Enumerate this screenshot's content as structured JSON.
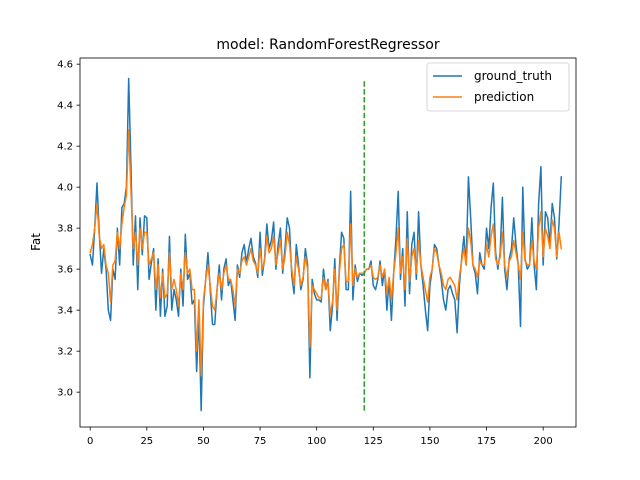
{
  "chart_data": {
    "type": "line",
    "title": "model: RandomForestRegressor",
    "xlabel": "",
    "ylabel": "Fat",
    "xlim": [
      -4.5,
      214.5
    ],
    "ylim": [
      2.83,
      4.63
    ],
    "xticks": [
      0,
      25,
      50,
      75,
      100,
      125,
      150,
      175,
      200
    ],
    "yticks": [
      3.0,
      3.2,
      3.4,
      3.6,
      3.8,
      4.0,
      4.2,
      4.4,
      4.6
    ],
    "legend_position": "top-right",
    "split_line": {
      "x": 121,
      "y0": 2.91,
      "y1": 4.52,
      "color": "#2ca02c",
      "style": "dashed"
    },
    "series": [
      {
        "name": "ground_truth",
        "color": "#1f77b4",
        "x_start": 0,
        "values": [
          3.67,
          3.62,
          3.8,
          4.02,
          3.78,
          3.58,
          3.7,
          3.6,
          3.4,
          3.35,
          3.6,
          3.55,
          3.8,
          3.62,
          3.9,
          3.92,
          4.0,
          4.53,
          4.1,
          3.62,
          3.86,
          3.5,
          3.85,
          3.67,
          3.86,
          3.85,
          3.55,
          3.63,
          3.7,
          3.4,
          3.65,
          3.37,
          3.6,
          3.37,
          3.42,
          3.76,
          3.4,
          3.5,
          3.45,
          3.37,
          3.6,
          3.42,
          3.77,
          3.55,
          3.58,
          3.43,
          3.45,
          3.1,
          3.38,
          2.91,
          3.42,
          3.55,
          3.68,
          3.5,
          3.33,
          3.33,
          3.5,
          3.62,
          3.45,
          3.6,
          3.65,
          3.52,
          3.55,
          3.45,
          3.35,
          3.62,
          3.56,
          3.68,
          3.72,
          3.63,
          3.7,
          3.75,
          3.66,
          3.63,
          3.56,
          3.78,
          3.57,
          3.65,
          3.82,
          3.7,
          3.74,
          3.83,
          3.6,
          3.72,
          3.8,
          3.58,
          3.7,
          3.85,
          3.8,
          3.57,
          3.48,
          3.72,
          3.62,
          3.5,
          3.55,
          3.7,
          3.62,
          3.07,
          3.55,
          3.48,
          3.45,
          3.45,
          3.44,
          3.6,
          3.5,
          3.55,
          3.3,
          3.42,
          3.65,
          3.35,
          3.6,
          3.78,
          3.75,
          3.5,
          3.5,
          3.98,
          3.45,
          3.62,
          3.54,
          3.58,
          3.57,
          3.58,
          3.6,
          3.6,
          3.64,
          3.52,
          3.5,
          3.55,
          3.64,
          3.52,
          3.6,
          3.4,
          3.55,
          3.35,
          3.58,
          3.75,
          3.98,
          3.55,
          3.7,
          3.42,
          3.88,
          3.48,
          3.72,
          3.78,
          3.55,
          3.88,
          3.62,
          3.52,
          3.4,
          3.3,
          3.52,
          3.6,
          3.72,
          3.7,
          3.62,
          3.55,
          3.45,
          3.4,
          3.5,
          3.52,
          3.48,
          3.45,
          3.29,
          3.52,
          3.65,
          3.76,
          3.62,
          4.05,
          3.85,
          3.62,
          3.58,
          3.48,
          3.68,
          3.62,
          3.6,
          3.8,
          3.7,
          3.9,
          4.02,
          3.68,
          3.6,
          3.68,
          3.95,
          3.6,
          3.5,
          3.65,
          3.7,
          3.85,
          3.72,
          3.62,
          3.32,
          4.0,
          3.65,
          3.6,
          3.62,
          3.85,
          3.62,
          3.5,
          3.92,
          4.1,
          3.62,
          3.88,
          3.85,
          3.72,
          3.92,
          3.85,
          3.65,
          3.82,
          4.05
        ]
      },
      {
        "name": "prediction",
        "color": "#ff7f0e",
        "x_start": 0,
        "values": [
          3.68,
          3.72,
          3.8,
          3.92,
          3.76,
          3.7,
          3.72,
          3.62,
          3.58,
          3.44,
          3.62,
          3.64,
          3.78,
          3.7,
          3.82,
          3.9,
          3.96,
          4.28,
          3.98,
          3.7,
          3.78,
          3.62,
          3.8,
          3.7,
          3.78,
          3.78,
          3.62,
          3.65,
          3.68,
          3.5,
          3.62,
          3.46,
          3.58,
          3.46,
          3.48,
          3.68,
          3.5,
          3.55,
          3.5,
          3.42,
          3.58,
          3.5,
          3.68,
          3.58,
          3.6,
          3.5,
          3.5,
          3.2,
          3.45,
          3.08,
          3.45,
          3.55,
          3.62,
          3.52,
          3.42,
          3.4,
          3.5,
          3.58,
          3.5,
          3.58,
          3.62,
          3.55,
          3.55,
          3.5,
          3.42,
          3.6,
          3.58,
          3.64,
          3.66,
          3.62,
          3.66,
          3.7,
          3.64,
          3.62,
          3.58,
          3.7,
          3.6,
          3.64,
          3.76,
          3.68,
          3.7,
          3.76,
          3.62,
          3.68,
          3.74,
          3.6,
          3.66,
          3.78,
          3.72,
          3.6,
          3.52,
          3.66,
          3.6,
          3.52,
          3.56,
          3.66,
          3.6,
          3.22,
          3.52,
          3.5,
          3.48,
          3.46,
          3.46,
          3.56,
          3.5,
          3.54,
          3.38,
          3.44,
          3.6,
          3.4,
          3.58,
          3.7,
          3.72,
          3.54,
          3.54,
          3.82,
          3.52,
          3.6,
          3.56,
          3.58,
          3.58,
          3.58,
          3.6,
          3.6,
          3.62,
          3.56,
          3.55,
          3.56,
          3.62,
          3.56,
          3.6,
          3.48,
          3.56,
          3.45,
          3.58,
          3.68,
          3.8,
          3.58,
          3.66,
          3.5,
          3.75,
          3.54,
          3.66,
          3.7,
          3.58,
          3.74,
          3.62,
          3.56,
          3.5,
          3.44,
          3.56,
          3.6,
          3.7,
          3.68,
          3.62,
          3.58,
          3.52,
          3.5,
          3.55,
          3.56,
          3.54,
          3.52,
          3.45,
          3.56,
          3.64,
          3.7,
          3.62,
          3.8,
          3.74,
          3.62,
          3.6,
          3.56,
          3.64,
          3.62,
          3.62,
          3.72,
          3.66,
          3.76,
          3.82,
          3.65,
          3.62,
          3.66,
          3.78,
          3.62,
          3.56,
          3.64,
          3.66,
          3.74,
          3.68,
          3.62,
          3.55,
          3.78,
          3.64,
          3.62,
          3.62,
          3.74,
          3.64,
          3.6,
          3.8,
          3.88,
          3.66,
          3.8,
          3.76,
          3.7,
          3.84,
          3.8,
          3.66,
          3.78,
          3.7
        ]
      }
    ]
  }
}
